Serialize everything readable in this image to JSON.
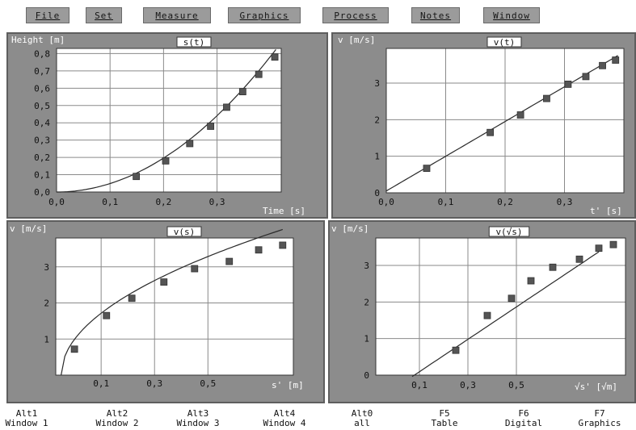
{
  "menu": [
    {
      "label": "File"
    },
    {
      "label": "Set"
    },
    {
      "label": "Measure"
    },
    {
      "label": "Graphics"
    },
    {
      "label": "Process"
    },
    {
      "label": "Notes"
    },
    {
      "label": "Window"
    }
  ],
  "fkeys": [
    {
      "key": "Alt1",
      "label": "Window 1"
    },
    {
      "key": "Alt2",
      "label": "Window 2"
    },
    {
      "key": "Alt3",
      "label": "Window 3"
    },
    {
      "key": "Alt4",
      "label": "Window 4"
    },
    {
      "key": "Alt0",
      "label": "all"
    },
    {
      "key": "F5",
      "label": "Table"
    },
    {
      "key": "F6",
      "label": "Digital"
    },
    {
      "key": "F7",
      "label": "Graphics"
    }
  ],
  "colors": {
    "panel_bg": "#8c8c8c",
    "plot_bg": "#ffffff",
    "grid": "#8a8a8a",
    "curve": "#2a2a2a",
    "marker": "#555555",
    "menu_bg": "#9b9b9b"
  },
  "chart_data": [
    {
      "type": "scatter",
      "title": "s(t)",
      "ylabel": "Height [m]",
      "xlabel": "Time [s]",
      "xlim": [
        0,
        0.42
      ],
      "ylim": [
        0,
        0.83
      ],
      "xticks": [
        0.0,
        0.1,
        0.2,
        0.3
      ],
      "xtick_labels": [
        "0,0",
        "0,1",
        "0,2",
        "0,3"
      ],
      "yticks": [
        0.0,
        0.1,
        0.2,
        0.3,
        0.4,
        0.5,
        0.6,
        0.7,
        0.8
      ],
      "ytick_labels": [
        "0,0",
        "0,1",
        "0,2",
        "0,3",
        "0,4",
        "0,5",
        "0,6",
        "0,7",
        "0,8"
      ],
      "grid": true,
      "points": [
        [
          0.149,
          0.09
        ],
        [
          0.204,
          0.18
        ],
        [
          0.249,
          0.28
        ],
        [
          0.288,
          0.38
        ],
        [
          0.318,
          0.49
        ],
        [
          0.348,
          0.58
        ],
        [
          0.378,
          0.68
        ],
        [
          0.408,
          0.78
        ]
      ],
      "fit": {
        "kind": "quadratic",
        "a": 4.9,
        "b": 0,
        "c": 0
      },
      "fit_range": [
        0,
        0.41
      ]
    },
    {
      "type": "scatter",
      "title": "v(t)",
      "ylabel": "v [m/s]",
      "xlabel": "t' [s]",
      "xlim": [
        0,
        0.4
      ],
      "ylim": [
        0,
        3.95
      ],
      "xticks": [
        0.0,
        0.1,
        0.2,
        0.3
      ],
      "xtick_labels": [
        "0,0",
        "0,1",
        "0,2",
        "0,3"
      ],
      "yticks": [
        0,
        1,
        2,
        3
      ],
      "ytick_labels": [
        "0",
        "1",
        "2",
        "3"
      ],
      "grid": true,
      "points": [
        [
          0.068,
          0.67
        ],
        [
          0.175,
          1.65
        ],
        [
          0.226,
          2.13
        ],
        [
          0.27,
          2.58
        ],
        [
          0.306,
          2.97
        ],
        [
          0.336,
          3.18
        ],
        [
          0.364,
          3.48
        ],
        [
          0.386,
          3.63
        ]
      ],
      "fit": {
        "kind": "linear",
        "a": 9.5,
        "b": 0.05
      },
      "fit_range": [
        0,
        0.39
      ]
    },
    {
      "type": "scatter",
      "title": "v(s)",
      "ylabel": "v [m/s]",
      "xlabel": "s' [m]",
      "xlim": [
        -0.07,
        0.82
      ],
      "ylim": [
        0,
        3.8
      ],
      "xticks": [
        0.1,
        0.3,
        0.5
      ],
      "xtick_labels": [
        "0,1",
        "0,3",
        "0,5"
      ],
      "yticks": [
        1,
        2,
        3
      ],
      "ytick_labels": [
        "1",
        "2",
        "3"
      ],
      "grid": true,
      "points": [
        [
          0.0,
          0.72
        ],
        [
          0.12,
          1.65
        ],
        [
          0.215,
          2.13
        ],
        [
          0.335,
          2.58
        ],
        [
          0.45,
          2.95
        ],
        [
          0.58,
          3.15
        ],
        [
          0.69,
          3.47
        ],
        [
          0.78,
          3.6
        ]
      ],
      "fit": {
        "kind": "sqrt",
        "a": 4.43
      },
      "fit_range": [
        -0.05,
        0.78
      ]
    },
    {
      "type": "scatter",
      "title": "v(√s)",
      "ylabel": "v [m/s]",
      "xlabel": "√s' [√m]",
      "xlim": [
        -0.08,
        0.95
      ],
      "ylim": [
        0,
        3.75
      ],
      "xticks": [
        0.1,
        0.3,
        0.5
      ],
      "xtick_labels": [
        "0,1",
        "0,3",
        "0,5"
      ],
      "yticks": [
        0,
        1,
        2,
        3
      ],
      "ytick_labels": [
        "0",
        "1",
        "2",
        "3"
      ],
      "grid": true,
      "points": [
        [
          0.25,
          0.68
        ],
        [
          0.38,
          1.63
        ],
        [
          0.48,
          2.1
        ],
        [
          0.56,
          2.58
        ],
        [
          0.65,
          2.95
        ],
        [
          0.76,
          3.17
        ],
        [
          0.84,
          3.47
        ],
        [
          0.9,
          3.57
        ]
      ],
      "fit": {
        "kind": "linear",
        "a": 4.43,
        "b": -0.35
      },
      "fit_range": [
        0.07,
        0.84
      ]
    }
  ]
}
